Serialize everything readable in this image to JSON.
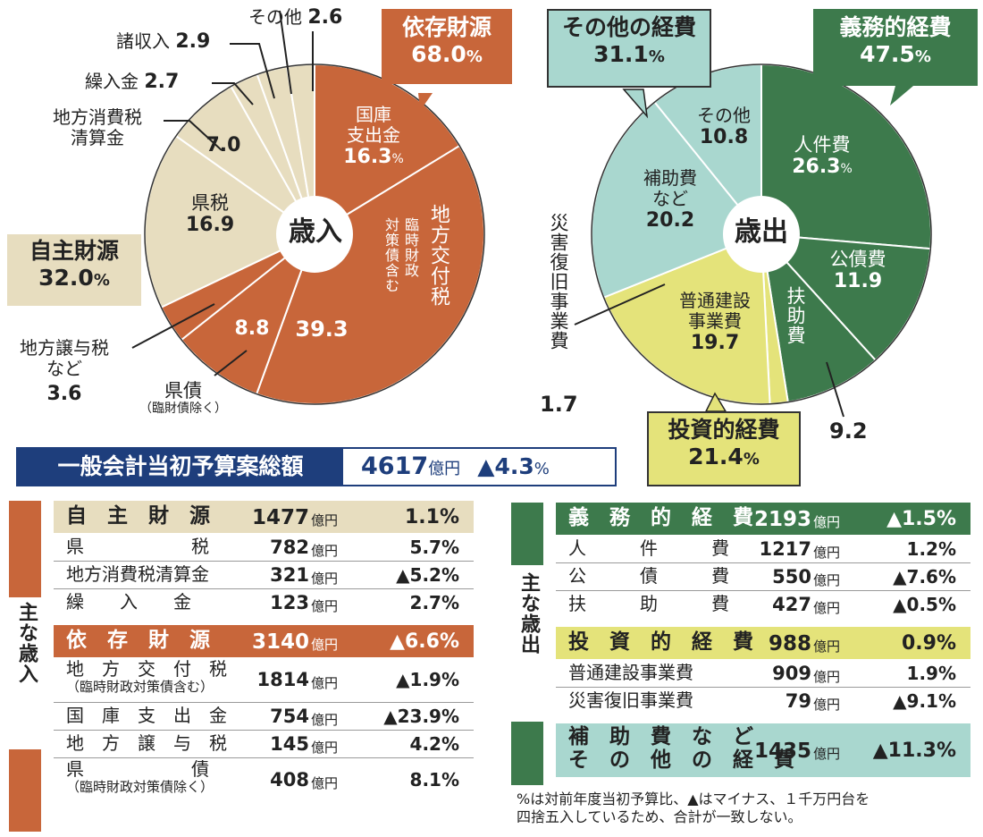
{
  "colors": {
    "orange": "#C8663A",
    "beige": "#E7DDBF",
    "dark_green": "#3D7A4C",
    "light_teal": "#A9D7CF",
    "yellow": "#E4E37A",
    "navy": "#1E3E7C"
  },
  "chart_data": [
    {
      "type": "pie",
      "title": "歳入",
      "groups": [
        {
          "name": "依存財源",
          "value": 68.0
        },
        {
          "name": "自主財源",
          "value": 32.0
        }
      ],
      "slices": [
        {
          "label": "国庫支出金",
          "value": 16.3,
          "group": "依存財源"
        },
        {
          "label": "地方交付税（臨時財政対策債含む）",
          "value": 39.3,
          "group": "依存財源"
        },
        {
          "label": "県債（臨財債除く）",
          "value": 8.8,
          "group": "依存財源"
        },
        {
          "label": "地方譲与税など",
          "value": 3.6,
          "group": "依存財源"
        },
        {
          "label": "県税",
          "value": 16.9,
          "group": "自主財源"
        },
        {
          "label": "地方消費税清算金",
          "value": 7.0,
          "group": "自主財源"
        },
        {
          "label": "繰入金",
          "value": 2.7,
          "group": "自主財源"
        },
        {
          "label": "諸収入",
          "value": 2.9,
          "group": "自主財源"
        },
        {
          "label": "その他",
          "value": 2.6,
          "group": "自主財源"
        }
      ]
    },
    {
      "type": "pie",
      "title": "歳出",
      "groups": [
        {
          "name": "義務的経費",
          "value": 47.5
        },
        {
          "name": "投資的経費",
          "value": 21.4
        },
        {
          "name": "その他の経費",
          "value": 31.1
        }
      ],
      "slices": [
        {
          "label": "人件費",
          "value": 26.3,
          "group": "義務的経費"
        },
        {
          "label": "公債費",
          "value": 11.9,
          "group": "義務的経費"
        },
        {
          "label": "扶助費",
          "value": 9.2,
          "group": "義務的経費"
        },
        {
          "label": "災害復旧事業費",
          "value": 1.7,
          "group": "投資的経費"
        },
        {
          "label": "普通建設事業費",
          "value": 19.7,
          "group": "投資的経費"
        },
        {
          "label": "補助費など",
          "value": 20.2,
          "group": "その他の経費"
        },
        {
          "label": "その他",
          "value": 10.8,
          "group": "その他の経費"
        }
      ]
    },
    {
      "type": "table",
      "title": "主な歳入",
      "rows": [
        {
          "item": "自主財源",
          "amount": 1477,
          "unit": "億円",
          "change": "1.1%"
        },
        {
          "item": "県税",
          "amount": 782,
          "unit": "億円",
          "change": "5.7%"
        },
        {
          "item": "地方消費税清算金",
          "amount": 321,
          "unit": "億円",
          "change": "▲5.2%"
        },
        {
          "item": "繰入金",
          "amount": 123,
          "unit": "億円",
          "change": "2.7%"
        },
        {
          "item": "依存財源",
          "amount": 3140,
          "unit": "億円",
          "change": "▲6.6%"
        },
        {
          "item": "地方交付税（臨時財政対策債含む）",
          "amount": 1814,
          "unit": "億円",
          "change": "▲1.9%"
        },
        {
          "item": "国庫支出金",
          "amount": 754,
          "unit": "億円",
          "change": "▲23.9%"
        },
        {
          "item": "地方譲与税",
          "amount": 145,
          "unit": "億円",
          "change": "4.2%"
        },
        {
          "item": "県債（臨時財政対策債除く）",
          "amount": 408,
          "unit": "億円",
          "change": "8.1%"
        }
      ]
    },
    {
      "type": "table",
      "title": "主な歳出",
      "rows": [
        {
          "item": "義務的経費",
          "amount": 2193,
          "unit": "億円",
          "change": "▲1.5%"
        },
        {
          "item": "人件費",
          "amount": 1217,
          "unit": "億円",
          "change": "1.2%"
        },
        {
          "item": "公債費",
          "amount": 550,
          "unit": "億円",
          "change": "▲7.6%"
        },
        {
          "item": "扶助費",
          "amount": 427,
          "unit": "億円",
          "change": "▲0.5%"
        },
        {
          "item": "投資的経費",
          "amount": 988,
          "unit": "億円",
          "change": "0.9%"
        },
        {
          "item": "普通建設事業費",
          "amount": 909,
          "unit": "億円",
          "change": "1.9%"
        },
        {
          "item": "災害復旧事業費",
          "amount": 79,
          "unit": "億円",
          "change": "▲9.1%"
        },
        {
          "item": "補助費などその他の経費",
          "amount": 1435,
          "unit": "億円",
          "change": "▲11.3%"
        }
      ]
    }
  ],
  "labels": {
    "rev_center": "歳入",
    "exp_center": "歳出",
    "c_izon_name": "依存財源",
    "c_izon_val": "68.0",
    "c_izon_pct": "%",
    "c_jishu_name": "自主財源",
    "c_jishu_val": "32.0",
    "c_jishu_pct": "%",
    "c_gimu_name": "義務的経費",
    "c_gimu_val": "47.5",
    "c_gimu_pct": "%",
    "c_sonota_name": "その他の経費",
    "c_sonota_val": "31.1",
    "c_sonota_pct": "%",
    "c_toshi_name": "投資的経費",
    "c_toshi_val": "21.4",
    "c_toshi_pct": "%",
    "r_kokko_1": "国庫",
    "r_kokko_2": "支出金",
    "r_kokko_val": "16.3",
    "r_kokko_pct": "%",
    "r_kofu_1": "地方交付税",
    "r_kofu_2": "臨時財政",
    "r_kofu_3": "対策債含む",
    "r_kofu_val": "39.3",
    "r_kensai_val": "8.8",
    "r_kensai_1": "県債",
    "r_kensai_2": "（臨財債除く）",
    "r_joyo_1": "地方譲与税",
    "r_joyo_2": "など",
    "r_joyo_val": "3.6",
    "r_kenzei_1": "県税",
    "r_kenzei_val": "16.9",
    "r_shohi_1": "地方消費税",
    "r_shohi_2": "清算金",
    "r_shohi_val": "7.0",
    "r_kurii": "繰入金",
    "r_kurii_val": "2.7",
    "r_sho": "諸収入",
    "r_sho_val": "2.9",
    "r_sonota": "その他",
    "r_sonota_val": "2.6",
    "e_jinken_1": "人件費",
    "e_jinken_val": "26.3",
    "e_jinken_pct": "%",
    "e_kosai_1": "公債費",
    "e_kosai_val": "11.9",
    "e_fujo_1": "扶助費",
    "e_fujo_val": "9.2",
    "e_futsu_1": "普通建設",
    "e_futsu_2": "事業費",
    "e_futsu_val": "19.7",
    "e_saigai": "災害復旧事業費",
    "e_saigai_val": "1.7",
    "e_hojo_1": "補助費",
    "e_hojo_2": "など",
    "e_hojo_val": "20.2",
    "e_sonota_1": "その他",
    "e_sonota_val": "10.8"
  },
  "banner": {
    "title": "一般会計当初予算案総額",
    "amount": "4617",
    "unit": "億円",
    "change": "▲4.3",
    "pct": "%"
  },
  "rev_side_label": "主な歳入",
  "exp_side_label": "主な歳出",
  "rev_table": [
    {
      "l1": "自　主　財　源",
      "amt": "1477",
      "u": "億円",
      "chg": "1.1%",
      "kind": "head"
    },
    {
      "l1": "県　　　　　　税",
      "amt": "782",
      "u": "億円",
      "chg": "5.7%",
      "kind": "row"
    },
    {
      "l1": "地方消費税清算金",
      "amt": "321",
      "u": "億円",
      "chg": "▲5.2%",
      "kind": "row"
    },
    {
      "l1": "繰　　入　　金",
      "amt": "123",
      "u": "億円",
      "chg": "2.7%",
      "kind": "row"
    },
    {
      "l1": "依　存　財　源",
      "amt": "3140",
      "u": "億円",
      "chg": "▲6.6%",
      "kind": "head"
    },
    {
      "l1": "地　方　交　付　税",
      "l2": "（臨時財政対策債含む）",
      "amt": "1814",
      "u": "億円",
      "chg": "▲1.9%",
      "kind": "row"
    },
    {
      "l1": "国　庫　支　出　金",
      "amt": "754",
      "u": "億円",
      "chg": "▲23.9%",
      "kind": "row"
    },
    {
      "l1": "地　方　譲　与　税",
      "amt": "145",
      "u": "億円",
      "chg": "4.2%",
      "kind": "row"
    },
    {
      "l1": "県　　　　　　債",
      "l2": "（臨時財政対策債除く）",
      "amt": "408",
      "u": "億円",
      "chg": "8.1%",
      "kind": "row"
    }
  ],
  "exp_table": [
    {
      "l1": "義　務　的　経　費",
      "amt": "2193",
      "u": "億円",
      "chg": "▲1.5%",
      "kind": "head"
    },
    {
      "l1": "人　　　件　　　費",
      "amt": "1217",
      "u": "億円",
      "chg": "1.2%",
      "kind": "row"
    },
    {
      "l1": "公　　　債　　　費",
      "amt": "550",
      "u": "億円",
      "chg": "▲7.6%",
      "kind": "row"
    },
    {
      "l1": "扶　　　助　　　費",
      "amt": "427",
      "u": "億円",
      "chg": "▲0.5%",
      "kind": "row"
    },
    {
      "l1": "投　資　的　経　費",
      "amt": "988",
      "u": "億円",
      "chg": "0.9%",
      "kind": "head"
    },
    {
      "l1": "普通建設事業費",
      "amt": "909",
      "u": "億円",
      "chg": "1.9%",
      "kind": "row"
    },
    {
      "l1": "災害復旧事業費",
      "amt": "79",
      "u": "億円",
      "chg": "▲9.1%",
      "kind": "row"
    },
    {
      "l1": "補　助　費　な　ど",
      "l2": "そ　の　他　の　経　費",
      "amt": "1435",
      "u": "億円",
      "chg": "▲11.3%",
      "kind": "head"
    }
  ],
  "footnote_1": "%は対前年度当初予算比、▲はマイナス、１千万円台を",
  "footnote_2": "四捨五入しているため、合計が一致しない。"
}
